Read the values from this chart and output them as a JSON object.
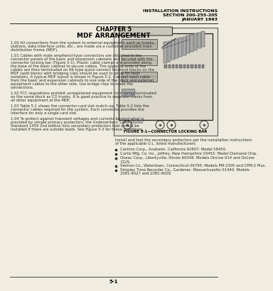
{
  "header_line1": "INSTALLATION INSTRUCTIONS",
  "header_line2": "SECTION 200-255-205",
  "header_line3": "JANUARY 1993",
  "chapter": "CHAPTER 5",
  "section_title": "MDF ARRANGEMENT",
  "para_100": "1.00  All connections from the system to external equipment, such as trunks, stations, data interface units, etc., are made via a customer-provided main distribution frame (MDF).",
  "para_101": "1.01  Cables with male amphenol-type connectors are attached to the connector panels of the basic and expansion cabinets and secured with the connector locking bar (Figure 5-1). Plastic cable clamps are provided along the base of the basic cabinet to secure cables. The opposite ends of the cables are then terminated on 66-type quick-connect terminal blocks on the MDF (split blocks with bridging clips should be used to allow for fault isolation). A typical MDF layout is shown in Figure 5-2. Connect each cable from the basic and expansion cabinets to one side of the block and external equipment cables to the other side. Use bridge clips to make the connections.",
  "para_102": "1.02  FCC regulations prohibit unregistered equipment from being terminated on the same block as CO trunks. It is good practice to separate trunks from all other equipment at the MDF.",
  "para_103": "1.03  Table 5-1 shows the connector-card slot match-up. Table 5-2 lists the connector cables required for the system. Each connector provides the interface for only a single card slot.",
  "para_104": "1.04  To protect against transient voltages and currents beyond what is provided by simple primary protectors, the Underwriters' Laboratories' Standard 1459 2nd edition lists secondary protectors that should be installed if there are outside leads. See Figure 5-3 for these conditions.",
  "figure_caption": "FIGURE 5-1—CONNECTOR LOCKING BAR",
  "right_text1": "Install and test the secondary protectors per the installation instructions of the applicable U.L. listed manufacturers:",
  "bullet1": "Cantron Corp., Anaheim, California 92807: Model 58450.",
  "bullet2": "Curtis Mfg. Co. Inc., Jaffrey, New Hampshire 03452: Model Diamond Chip.",
  "bullet3": "Oneac Corp., Libertyville, Illinois 60048: Models OnLine 614 and OnLine DG/S.",
  "bullet4": "Siemon Co., Watertown, Connecticut 06795: Models PM-2305 and CPM-2 Plus.",
  "bullet5": "Simplex Time Recorder Co., Gardener, Massachusetts 01440: Models 2081-9027 and 2081-9028.",
  "page_number": "5-1",
  "bg_color": "#f0ece0",
  "text_color": "#2a2a2a",
  "header_color": "#000000",
  "fig_border_color": "#666666",
  "fig_bg_color": "#e8e4d8"
}
